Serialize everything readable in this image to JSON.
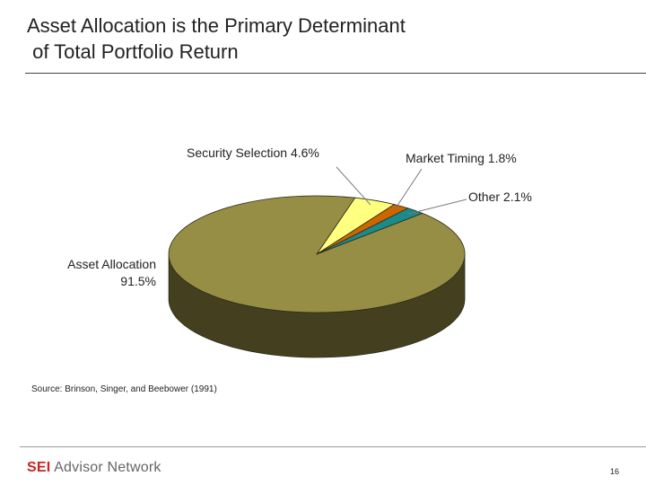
{
  "slide": {
    "title_lines": [
      "Asset Allocation is the Primary Determinant",
      " of Total Portfolio Return"
    ],
    "source": "Source:  Brinson, Singer, and Beebower (1991)",
    "logo": {
      "brand": "SEI",
      "name": "Advisor Network"
    },
    "page_number": "16"
  },
  "chart_data": {
    "type": "pie",
    "three_d": true,
    "slices": [
      {
        "name": "Security Selection",
        "label": "Security Selection  4.6%",
        "value": 4.6,
        "color": "#ffff80"
      },
      {
        "name": "Market Timing",
        "label": "Market Timing 1.8%",
        "value": 1.8,
        "color": "#cc6600"
      },
      {
        "name": "Other",
        "label": "Other  2.1%",
        "value": 2.1,
        "color": "#1a8a8a"
      },
      {
        "name": "Asset Allocation",
        "label_lines": [
          "Asset Allocation",
          "91.5%"
        ],
        "value": 91.5,
        "color": "#968e44"
      }
    ]
  }
}
